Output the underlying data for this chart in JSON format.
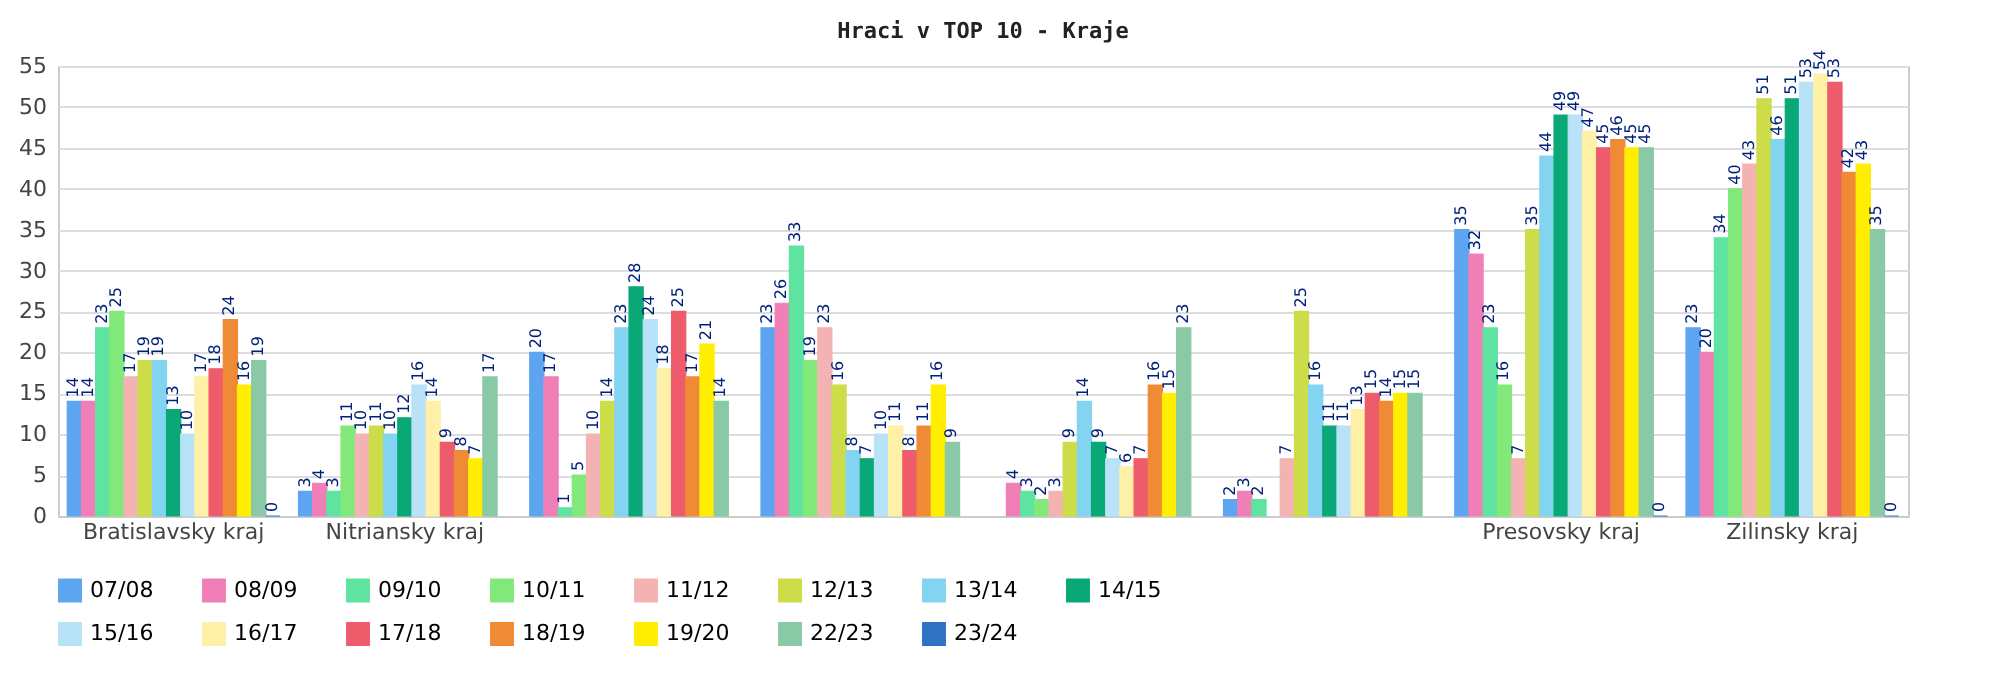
{
  "chart_data": {
    "type": "bar",
    "title": "Hraci v TOP 10 - Kraje",
    "categories": [
      "Bratislavsky kraj",
      "Nitriansky kraj",
      null,
      null,
      null,
      null,
      "Presovsky kraj",
      "Zilinsky kraj"
    ],
    "series": [
      {
        "name": "07/08",
        "color": "#5da5f0",
        "values": [
          14,
          3,
          20,
          23,
          null,
          2,
          35,
          23
        ]
      },
      {
        "name": "08/09",
        "color": "#f07fb8",
        "values": [
          14,
          4,
          17,
          26,
          4,
          3,
          32,
          20
        ]
      },
      {
        "name": "09/10",
        "color": "#5ee3a1",
        "values": [
          23,
          3,
          1,
          33,
          3,
          2,
          23,
          34
        ]
      },
      {
        "name": "10/11",
        "color": "#82e87a",
        "values": [
          25,
          11,
          5,
          19,
          2,
          null,
          16,
          40
        ]
      },
      {
        "name": "11/12",
        "color": "#f4b3b3",
        "values": [
          17,
          10,
          10,
          23,
          3,
          7,
          7,
          43
        ]
      },
      {
        "name": "12/13",
        "color": "#cddc49",
        "values": [
          19,
          11,
          14,
          16,
          9,
          25,
          35,
          51
        ]
      },
      {
        "name": "13/14",
        "color": "#83d4f0",
        "values": [
          19,
          10,
          23,
          8,
          14,
          16,
          44,
          46
        ]
      },
      {
        "name": "14/15",
        "color": "#0aa877",
        "values": [
          13,
          12,
          28,
          7,
          9,
          11,
          49,
          51
        ]
      },
      {
        "name": "15/16",
        "color": "#b8e2f7",
        "values": [
          10,
          16,
          24,
          10,
          7,
          11,
          49,
          53
        ]
      },
      {
        "name": "16/17",
        "color": "#fff0a8",
        "values": [
          17,
          14,
          18,
          11,
          6,
          13,
          47,
          54
        ]
      },
      {
        "name": "17/18",
        "color": "#ee5b6a",
        "values": [
          18,
          9,
          25,
          8,
          7,
          15,
          45,
          53
        ]
      },
      {
        "name": "18/19",
        "color": "#ef8a36",
        "values": [
          24,
          8,
          17,
          11,
          16,
          14,
          46,
          42
        ]
      },
      {
        "name": "19/20",
        "color": "#ffee00",
        "values": [
          16,
          7,
          21,
          16,
          15,
          15,
          45,
          43
        ]
      },
      {
        "name": "22/23",
        "color": "#89c9a5",
        "values": [
          19,
          17,
          14,
          9,
          23,
          15,
          45,
          35
        ]
      },
      {
        "name": "23/24",
        "color": "#2f72c4",
        "values": [
          0,
          null,
          null,
          null,
          null,
          null,
          0,
          0
        ]
      }
    ],
    "ylim": [
      0,
      55
    ],
    "yticks": [
      0,
      5,
      10,
      15,
      20,
      25,
      30,
      35,
      40,
      45,
      50,
      55
    ],
    "grid": true,
    "legend": "bottom",
    "data_labels": true
  }
}
